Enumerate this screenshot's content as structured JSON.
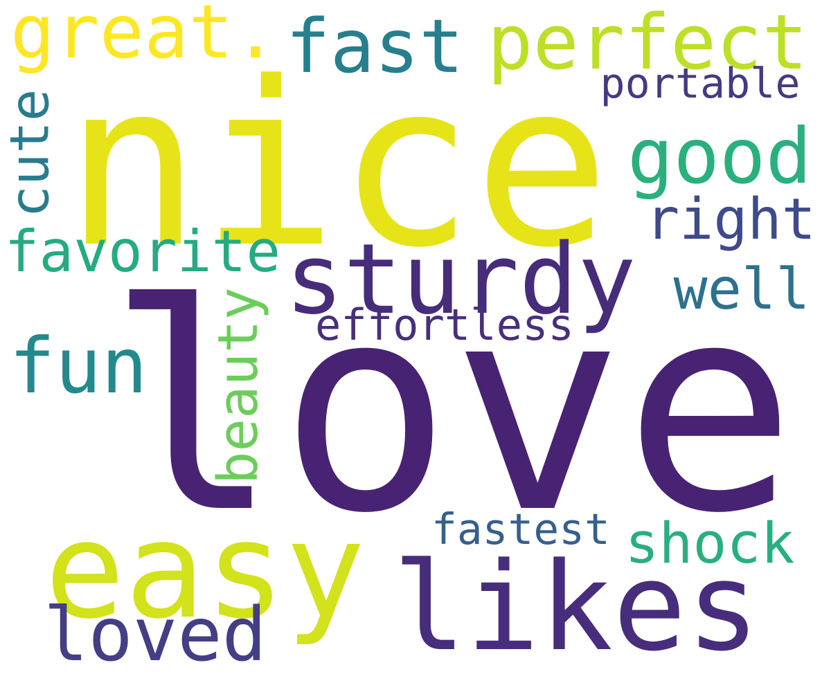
{
  "cloud": {
    "words": [
      {
        "id": "love",
        "text": "love",
        "color": "#482374"
      },
      {
        "id": "nice",
        "text": "nice",
        "color": "#e6e419"
      },
      {
        "id": "easy",
        "text": "easy",
        "color": "#d2e21b"
      },
      {
        "id": "sturdy",
        "text": "sturdy",
        "color": "#472c7a"
      },
      {
        "id": "likes",
        "text": "likes",
        "color": "#472d7b"
      },
      {
        "id": "great",
        "text": "great.",
        "color": "#fde725"
      },
      {
        "id": "fast",
        "text": "fast",
        "color": "#277f8e"
      },
      {
        "id": "perfect",
        "text": "perfect",
        "color": "#bddf26"
      },
      {
        "id": "good",
        "text": "good",
        "color": "#2ab07f"
      },
      {
        "id": "fun",
        "text": "fun",
        "color": "#23898e"
      },
      {
        "id": "loved",
        "text": "loved",
        "color": "#433e85"
      },
      {
        "id": "right",
        "text": "right",
        "color": "#3e4a89"
      },
      {
        "id": "favorite",
        "text": "favorite",
        "color": "#25ab82"
      },
      {
        "id": "well",
        "text": "well",
        "color": "#2d718e"
      },
      {
        "id": "shock",
        "text": "shock",
        "color": "#29af7f"
      },
      {
        "id": "cute",
        "text": "cute",
        "color": "#287c8e"
      },
      {
        "id": "beauty",
        "text": "beauty",
        "color": "#6ccd5a"
      },
      {
        "id": "portable",
        "text": "portable",
        "color": "#443a83"
      },
      {
        "id": "effortless",
        "text": "effortless",
        "color": "#472f7d"
      },
      {
        "id": "fastest",
        "text": "fastest",
        "color": "#355f8d"
      }
    ]
  }
}
